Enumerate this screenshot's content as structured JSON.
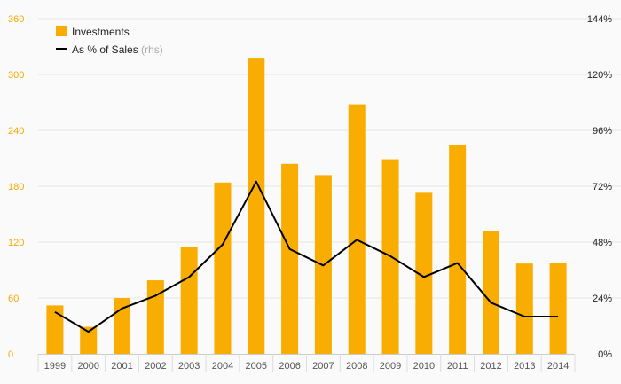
{
  "chart_data": {
    "type": "bar",
    "categories": [
      "1999",
      "2000",
      "2001",
      "2002",
      "2003",
      "2004",
      "2005",
      "2006",
      "2007",
      "2008",
      "2009",
      "2010",
      "2011",
      "2012",
      "2013",
      "2014"
    ],
    "series": [
      {
        "name": "Investments",
        "type": "bar",
        "axis": "left",
        "values": [
          52,
          29,
          60,
          79,
          115,
          184,
          318,
          204,
          192,
          268,
          209,
          173,
          224,
          132,
          97,
          98
        ]
      },
      {
        "name": "As % of Sales",
        "legend_note": "(rhs)",
        "type": "line",
        "axis": "right",
        "values": [
          18,
          9.5,
          19.5,
          25,
          33,
          47,
          74,
          45,
          38,
          49,
          42,
          33,
          39,
          22,
          16,
          16
        ]
      }
    ],
    "y_left": {
      "ylim": [
        0,
        360
      ],
      "ticks": [
        0,
        60,
        120,
        180,
        240,
        300,
        360
      ],
      "tick_labels": [
        "0",
        "60",
        "120",
        "180",
        "240",
        "300",
        "360"
      ]
    },
    "y_right": {
      "ylim": [
        0,
        144
      ],
      "ticks": [
        0,
        24,
        48,
        72,
        96,
        120,
        144
      ],
      "tick_labels": [
        "0%",
        "24%",
        "48%",
        "72%",
        "96%",
        "120%",
        "144%"
      ]
    },
    "title": "",
    "xlabel": "",
    "ylabel": "",
    "grid": true,
    "legend_position": "top-left",
    "colors": {
      "bar": "#f9ad00",
      "line": "#000000",
      "left_ticks": "#f5a800",
      "right_ticks": "#222222",
      "grid": "#e6e6e6"
    }
  }
}
